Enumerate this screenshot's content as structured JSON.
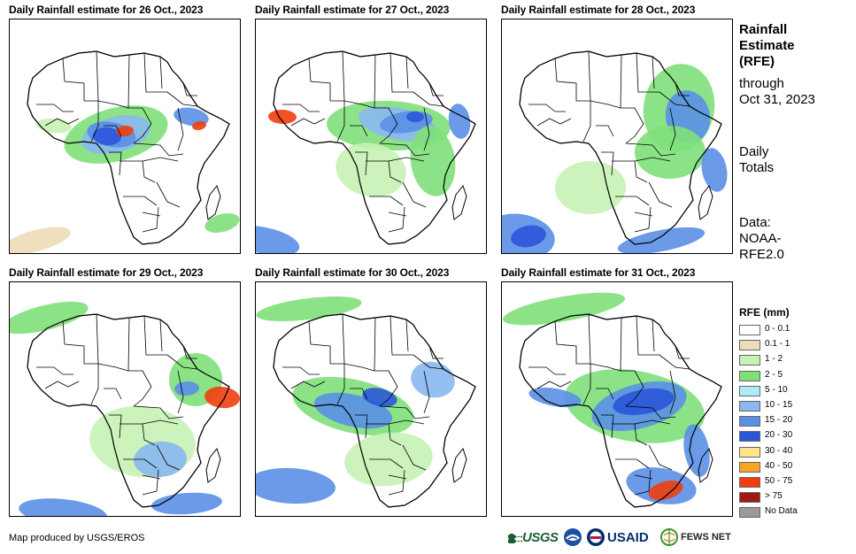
{
  "panels": [
    {
      "title": "Daily Rainfall estimate for 26 Oct., 2023"
    },
    {
      "title": "Daily Rainfall estimate for 27 Oct., 2023"
    },
    {
      "title": "Daily Rainfall estimate for 28 Oct., 2023"
    },
    {
      "title": "Daily Rainfall estimate for 29 Oct., 2023"
    },
    {
      "title": "Daily Rainfall estimate for 30 Oct., 2023"
    },
    {
      "title": "Daily Rainfall estimate for 31 Oct., 2023"
    }
  ],
  "side": {
    "title_line1": "Rainfall",
    "title_line2": "Estimate",
    "title_line3": "(RFE)",
    "through_line1": "through",
    "through_line2": "Oct 31, 2023",
    "totals_line1": "Daily",
    "totals_line2": "Totals",
    "data_line1": "Data:",
    "data_line2": "NOAA-",
    "data_line3": "RFE2.0"
  },
  "legend": {
    "title": "RFE (mm)",
    "items": [
      {
        "label": "0 - 0.1",
        "color": "#ffffff"
      },
      {
        "label": "0.1 - 1",
        "color": "#eedcb8"
      },
      {
        "label": "1 - 2",
        "color": "#c6f2b4"
      },
      {
        "label": "2 - 5",
        "color": "#7fe07a"
      },
      {
        "label": "5 - 10",
        "color": "#b0ecf5"
      },
      {
        "label": "10 - 15",
        "color": "#8ab8ef"
      },
      {
        "label": "15 - 20",
        "color": "#5a8fe6"
      },
      {
        "label": "20 - 30",
        "color": "#2a56d9"
      },
      {
        "label": "30 - 40",
        "color": "#fde68a"
      },
      {
        "label": "40 - 50",
        "color": "#f5a623"
      },
      {
        "label": "50 - 75",
        "color": "#f03e10"
      },
      {
        "label": "> 75",
        "color": "#a01818"
      },
      {
        "label": "No Data",
        "color": "#9a9a9a"
      }
    ]
  },
  "footer": {
    "credit": "Map produced by USGS/EROS"
  },
  "logos": {
    "usgs": "USGS",
    "usaid": "USAID",
    "fews": "FEWS NET"
  }
}
